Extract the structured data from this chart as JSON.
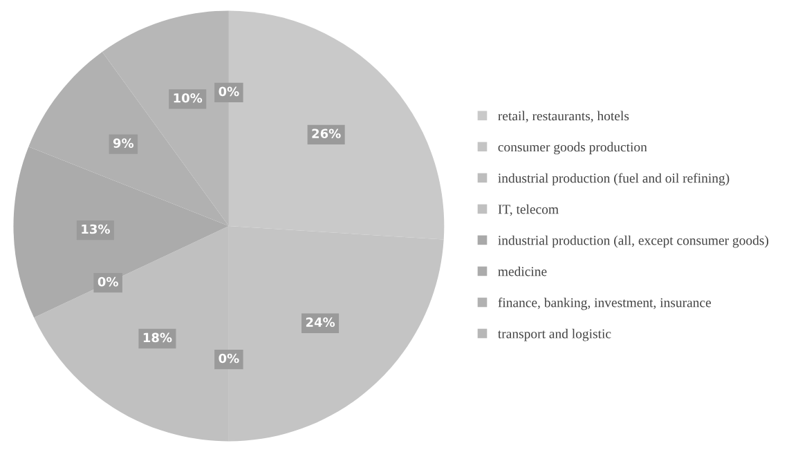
{
  "chart_data": {
    "type": "pie",
    "categories": [
      "retail, restaurants, hotels",
      "consumer goods production",
      "industrial production (fuel and oil refining)",
      "IT, telecom",
      "industrial production (all, except consumer goods)",
      "medicine",
      "finance, banking, investment, insurance",
      "transport and logistic",
      null
    ],
    "values": [
      26,
      24,
      0,
      18,
      0,
      13,
      9,
      10,
      0
    ],
    "colors": [
      "#c9c9c9",
      "#c4c4c4",
      "#bdbdbd",
      "#c0c0c0",
      "#a9a9a9",
      "#ababab",
      "#b1b1b1",
      "#b7b7b7",
      "#bcbcbc"
    ],
    "value_labels": [
      "26%",
      "24%",
      "0%",
      "18%",
      "0%",
      "13%",
      "9%",
      "10%",
      "0%"
    ],
    "legend": "right"
  }
}
